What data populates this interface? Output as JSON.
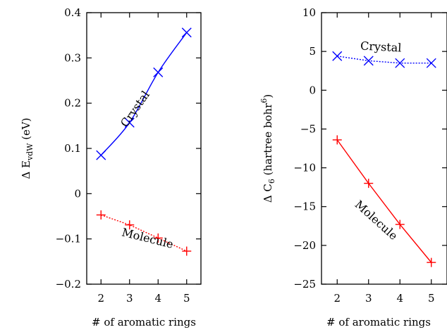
{
  "chart_data": [
    {
      "type": "line",
      "ylabel": "Δ E_vdW (eV)",
      "xlabel": "# of aromatic rings",
      "xlim": [
        1.5,
        5.5
      ],
      "ylim": [
        -0.2,
        0.4
      ],
      "xticks": [
        "2",
        "3",
        "4",
        "5"
      ],
      "yticks": [
        "−0.2",
        "−0.1",
        "0",
        "0.1",
        "0.2",
        "0.3",
        "0.4"
      ],
      "series": [
        {
          "name": "Crystal",
          "x": [
            2,
            3,
            4,
            5
          ],
          "values": [
            0.085,
            0.157,
            0.268,
            0.356
          ],
          "color": "#0000ff",
          "marker": "x",
          "line": "solid-smooth"
        },
        {
          "name": "Molecule",
          "x": [
            2,
            3,
            4,
            5
          ],
          "values": [
            -0.047,
            -0.069,
            -0.098,
            -0.127
          ],
          "color": "#ff0000",
          "marker": "+",
          "line": "dotted"
        }
      ],
      "annotations": [
        "Crystal",
        "Molecule"
      ]
    },
    {
      "type": "line",
      "ylabel": "Δ C_6 (hartree bohr^6)",
      "xlabel": "# of aromatic rings",
      "xlim": [
        1.5,
        5.5
      ],
      "ylim": [
        -25,
        10
      ],
      "xticks": [
        "2",
        "3",
        "4",
        "5"
      ],
      "yticks": [
        "−25",
        "−20",
        "−15",
        "−10",
        "−5",
        "0",
        "5",
        "10"
      ],
      "series": [
        {
          "name": "Crystal",
          "x": [
            2,
            3,
            4,
            5
          ],
          "values": [
            4.4,
            3.8,
            3.5,
            3.5
          ],
          "color": "#0000ff",
          "marker": "x",
          "line": "dotted"
        },
        {
          "name": "Molecule",
          "x": [
            2,
            3,
            4,
            5
          ],
          "values": [
            -6.4,
            -12.0,
            -17.3,
            -22.2
          ],
          "color": "#ff0000",
          "marker": "+",
          "line": "solid"
        }
      ],
      "annotations": [
        "Crystal",
        "Molecule"
      ]
    }
  ]
}
